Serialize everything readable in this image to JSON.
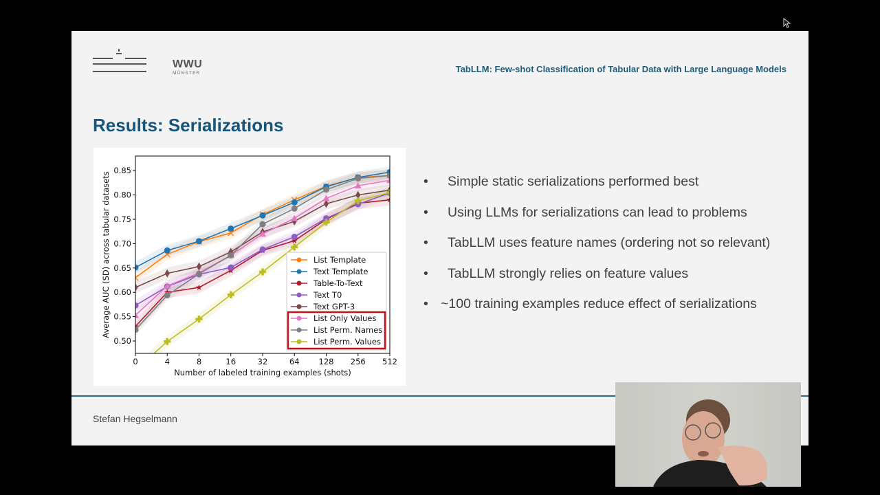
{
  "slide": {
    "logo": {
      "text": "WWU",
      "subtext": "MÜNSTER"
    },
    "header_title": "TabLLM: Few-shot Classification of Tabular Data with Large Language Models",
    "page_title": "Results: Serializations",
    "bullets": [
      {
        "marker": "•",
        "text": "Simple static serializations performed best"
      },
      {
        "marker": "•",
        "text": "Using LLMs for serializations can lead to problems"
      },
      {
        "marker": "•",
        "text": "TabLLM uses feature names (ordering not so relevant)"
      },
      {
        "marker": "•",
        "text": "TabLLM strongly relies on feature values"
      },
      {
        "marker": "•",
        "text": "~100 training examples reduce effect of serializations"
      }
    ],
    "footer": {
      "presenter": "Stefan Hegselmann"
    }
  },
  "webcam": {
    "label": "presenter-video"
  },
  "colors": {
    "slide_bg": "#f3f3f3",
    "title_blue": "#17557a",
    "header_blue": "#1f5a77",
    "footer_line": "#2b6b80",
    "highlight_box": "#c0141c"
  },
  "chart_data": {
    "type": "line",
    "title": "",
    "xlabel": "Number of labeled training examples (shots)",
    "ylabel": "Average AUC (SD) across tabular datasets",
    "categories": [
      "0",
      "4",
      "8",
      "16",
      "32",
      "64",
      "128",
      "256",
      "512"
    ],
    "ylim": [
      0.475,
      0.875
    ],
    "yticks": [
      "0.50",
      "0.55",
      "0.60",
      "0.65",
      "0.70",
      "0.75",
      "0.80",
      "0.85"
    ],
    "grid": false,
    "legend_position": "lower right",
    "legend_highlighted": [
      "List Only Values",
      "List Perm. Names",
      "List Perm. Values"
    ],
    "series": [
      {
        "name": "List Template",
        "color": "#ff7f0e",
        "marker": "x",
        "values": [
          0.63,
          0.678,
          0.704,
          0.722,
          0.76,
          0.79,
          0.818,
          0.836,
          0.84
        ]
      },
      {
        "name": "Text Template",
        "color": "#1f77b4",
        "marker": "o",
        "values": [
          0.651,
          0.686,
          0.705,
          0.731,
          0.758,
          0.785,
          0.817,
          0.836,
          0.847
        ]
      },
      {
        "name": "Table-To-Text",
        "color": "#b2182b",
        "marker": "*",
        "values": [
          0.53,
          0.6,
          0.61,
          0.645,
          0.686,
          0.706,
          0.75,
          0.783,
          0.79
        ]
      },
      {
        "name": "Text T0",
        "color": "#8c5cc4",
        "marker": "o",
        "values": [
          0.573,
          0.612,
          0.637,
          0.651,
          0.688,
          0.714,
          0.752,
          0.781,
          0.804
        ]
      },
      {
        "name": "Text GPT-3",
        "color": "#7a4a4a",
        "marker": "d",
        "values": [
          0.61,
          0.639,
          0.653,
          0.683,
          0.724,
          0.746,
          0.782,
          0.8,
          0.81
        ]
      },
      {
        "name": "List Only Values",
        "color": "#e377c2",
        "marker": "^",
        "values": [
          0.553,
          0.613,
          0.64,
          0.676,
          0.72,
          0.752,
          0.793,
          0.819,
          0.83
        ]
      },
      {
        "name": "List Perm. Names",
        "color": "#7f7f7f",
        "marker": "h",
        "values": [
          0.523,
          0.594,
          0.638,
          0.676,
          0.74,
          0.772,
          0.811,
          0.834,
          0.84
        ]
      },
      {
        "name": "List Perm. Values",
        "color": "#bcbd22",
        "marker": "P",
        "values": [
          0.44,
          0.499,
          0.545,
          0.595,
          0.642,
          0.693,
          0.744,
          0.788,
          0.805
        ]
      }
    ]
  }
}
